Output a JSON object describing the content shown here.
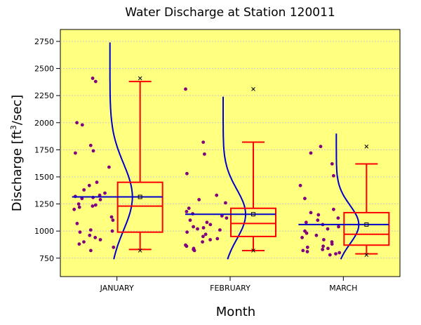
{
  "chart_data": {
    "type": "box",
    "title": "Water Discharge at Station 120011",
    "xlabel": "Month",
    "ylabel": {
      "main": "Discharge [ft",
      "sup": "3",
      "tail": "/sec]"
    },
    "ylim": [
      580,
      2860
    ],
    "yticks": [
      750,
      1000,
      1250,
      1500,
      1750,
      2000,
      2250,
      2500,
      2750
    ],
    "grid": "horizontal-dotted",
    "colors": {
      "background": "#ffff80",
      "box": "#ff0000",
      "curve": "#0000cc",
      "points": "#800080",
      "grid": "#c8c8c8"
    },
    "categories": [
      "JANUARY",
      "FEBRUARY",
      "MARCH"
    ],
    "series": [
      {
        "category": "JANUARY",
        "q1": 990,
        "median": 1230,
        "q3": 1450,
        "whisker_low": 830,
        "whisker_high": 2380,
        "mean": 1315,
        "min": 820,
        "max": 2410,
        "curve_top": 2740,
        "curve_bottom": 740,
        "points": [
          2410,
          2380,
          2000,
          1980,
          1790,
          1740,
          1720,
          1590,
          1450,
          1420,
          1380,
          1350,
          1330,
          1320,
          1310,
          1300,
          1290,
          1250,
          1240,
          1230,
          1220,
          1200,
          1130,
          1100,
          1070,
          1010,
          1000,
          990,
          960,
          940,
          920,
          900,
          880,
          850,
          820
        ]
      },
      {
        "category": "FEBRUARY",
        "q1": 950,
        "median": 1070,
        "q3": 1210,
        "whisker_low": 820,
        "whisker_high": 1820,
        "mean": 1155,
        "min": 820,
        "max": 2310,
        "curve_top": 2240,
        "curve_bottom": 740,
        "points": [
          2310,
          1820,
          1710,
          1530,
          1330,
          1290,
          1260,
          1210,
          1180,
          1160,
          1140,
          1120,
          1100,
          1080,
          1060,
          1040,
          1030,
          1020,
          1010,
          990,
          970,
          950,
          930,
          920,
          900,
          870,
          860,
          840,
          830,
          820
        ]
      },
      {
        "category": "MARCH",
        "q1": 870,
        "median": 970,
        "q3": 1170,
        "whisker_low": 790,
        "whisker_high": 1620,
        "mean": 1060,
        "min": 780,
        "max": 1780,
        "curve_top": 1900,
        "curve_bottom": 740,
        "points": [
          1780,
          1720,
          1620,
          1510,
          1420,
          1300,
          1200,
          1170,
          1150,
          1120,
          1100,
          1080,
          1060,
          1040,
          1020,
          1000,
          980,
          960,
          940,
          920,
          900,
          880,
          860,
          850,
          840,
          830,
          820,
          810,
          800,
          790,
          780
        ]
      }
    ]
  }
}
